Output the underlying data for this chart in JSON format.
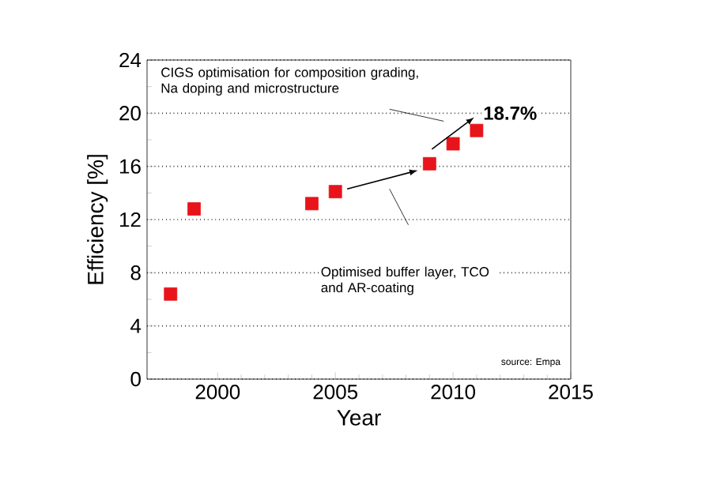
{
  "chart_data": {
    "type": "scatter",
    "xlabel": "Year",
    "ylabel": "Efficiency [%]",
    "x": [
      1998,
      1999,
      2004,
      2005,
      2009,
      2010,
      2011
    ],
    "values": [
      6.4,
      12.8,
      13.2,
      14.1,
      16.2,
      17.7,
      18.7
    ],
    "color": "#e8141b",
    "marker": "square",
    "xlim": [
      1997,
      2015
    ],
    "xticks": [
      2000,
      2005,
      2010,
      2015
    ],
    "ylim": [
      0,
      24
    ],
    "yticks": [
      0,
      4,
      8,
      12,
      16,
      20,
      24
    ],
    "grid": "y",
    "annotations": [
      "CIGS optimisation for composition grading, Na doping and microstructure",
      "Optimised buffer layer, TCO and AR-coating",
      "18.7%",
      "source: Empa"
    ]
  }
}
